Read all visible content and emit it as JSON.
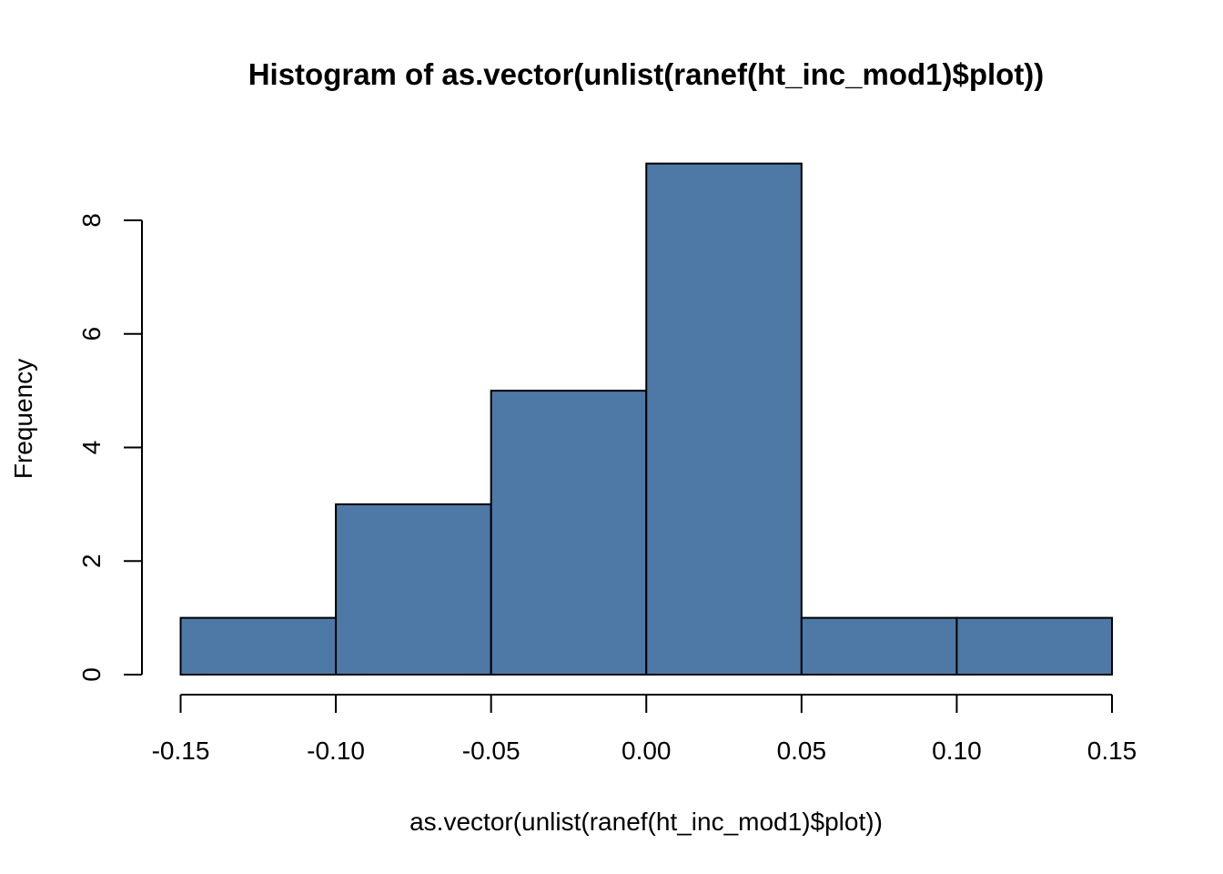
{
  "chart_data": {
    "type": "bar",
    "title": "Histogram of as.vector(unlist(ranef(ht_inc_mod1)$plot))",
    "xlabel": "as.vector(unlist(ranef(ht_inc_mod1)$plot))",
    "ylabel": "Frequency",
    "bins": [
      {
        "start": -0.15,
        "end": -0.1,
        "count": 1
      },
      {
        "start": -0.1,
        "end": -0.05,
        "count": 3
      },
      {
        "start": -0.05,
        "end": 0.0,
        "count": 5
      },
      {
        "start": 0.0,
        "end": 0.05,
        "count": 9
      },
      {
        "start": 0.05,
        "end": 0.1,
        "count": 1
      },
      {
        "start": 0.1,
        "end": 0.15,
        "count": 1
      }
    ],
    "x_ticks": [
      -0.15,
      -0.1,
      -0.05,
      0.0,
      0.05,
      0.1,
      0.15
    ],
    "x_tick_labels": [
      "-0.15",
      "-0.10",
      "-0.05",
      "0.00",
      "0.05",
      "0.10",
      "0.15"
    ],
    "y_ticks": [
      0,
      2,
      4,
      6,
      8
    ],
    "y_tick_labels": [
      "0",
      "2",
      "4",
      "6",
      "8"
    ],
    "xlim": [
      -0.15,
      0.15
    ],
    "ylim": [
      0,
      9
    ],
    "bar_color": "#4e79a7",
    "grid": false
  }
}
